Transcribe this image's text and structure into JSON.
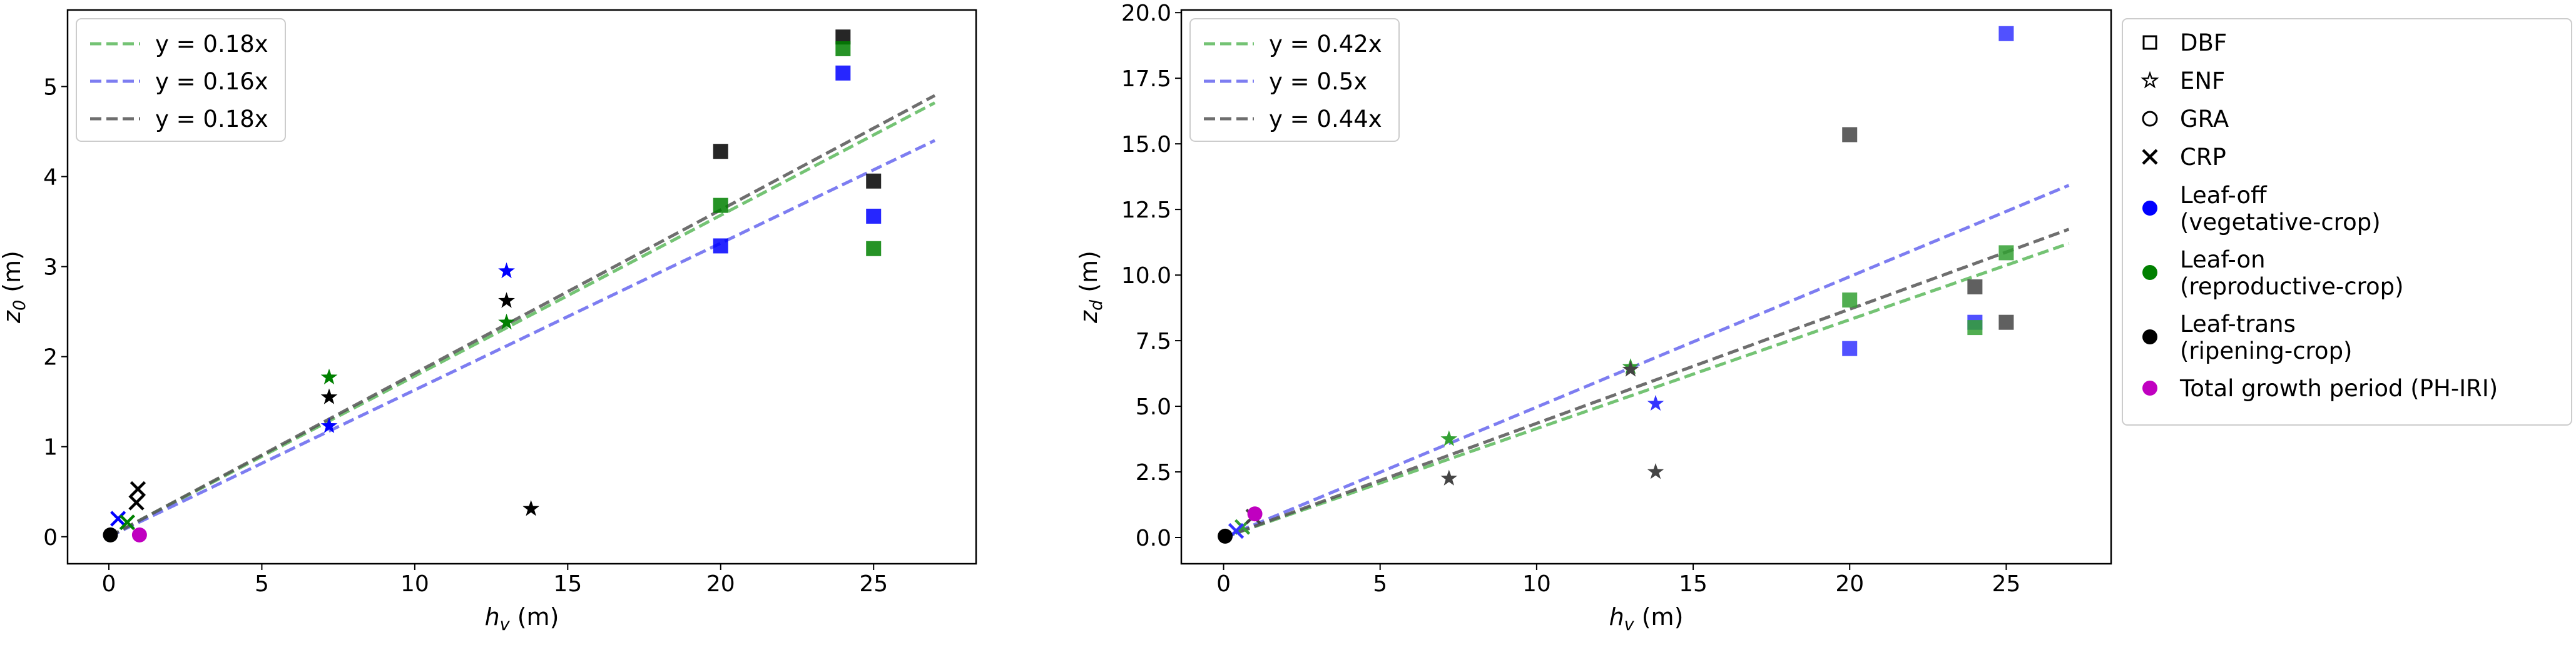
{
  "chart_data": [
    {
      "type": "scatter",
      "title": "",
      "xlabel_main": "h",
      "xlabel_sub": "v",
      "xlabel_unit": " (m)",
      "ylabel_main": "z",
      "ylabel_sub": "0",
      "ylabel_unit": " (m)",
      "xlim": [
        -1.35,
        28.35
      ],
      "ylim": [
        -0.3,
        5.85
      ],
      "xticks": [
        0,
        5,
        10,
        15,
        20,
        25
      ],
      "yticks": [
        0,
        1,
        2,
        3,
        4,
        5
      ],
      "ytick_format": "int",
      "legend_position": "upper left",
      "fit_lines": [
        {
          "label": "y = 0.18x",
          "slope": 0.1785,
          "color": "#5cb85c",
          "x_range": [
            0,
            27
          ]
        },
        {
          "label": "y = 0.16x",
          "slope": 0.163,
          "color": "#6666ee",
          "x_range": [
            0,
            27
          ]
        },
        {
          "label": "y = 0.18x",
          "slope": 0.1815,
          "color": "#555555",
          "x_range": [
            0,
            27
          ]
        }
      ],
      "points": [
        {
          "x": 24.0,
          "y": 5.55,
          "marker": "square",
          "color": "#000000"
        },
        {
          "x": 24.0,
          "y": 5.42,
          "marker": "square",
          "color": "#008000"
        },
        {
          "x": 24.0,
          "y": 5.15,
          "marker": "square",
          "color": "#0000ff"
        },
        {
          "x": 20.0,
          "y": 4.28,
          "marker": "square",
          "color": "#000000"
        },
        {
          "x": 20.0,
          "y": 3.68,
          "marker": "square",
          "color": "#008000"
        },
        {
          "x": 20.0,
          "y": 3.23,
          "marker": "square",
          "color": "#0000ff"
        },
        {
          "x": 25.0,
          "y": 3.95,
          "marker": "square",
          "color": "#000000"
        },
        {
          "x": 25.0,
          "y": 3.56,
          "marker": "square",
          "color": "#0000ff"
        },
        {
          "x": 25.0,
          "y": 3.2,
          "marker": "square",
          "color": "#008000"
        },
        {
          "x": 13.0,
          "y": 2.95,
          "marker": "star",
          "color": "#0000ff"
        },
        {
          "x": 13.0,
          "y": 2.62,
          "marker": "star",
          "color": "#000000"
        },
        {
          "x": 13.0,
          "y": 2.38,
          "marker": "star",
          "color": "#008000"
        },
        {
          "x": 7.2,
          "y": 1.77,
          "marker": "star",
          "color": "#008000"
        },
        {
          "x": 7.2,
          "y": 1.55,
          "marker": "star",
          "color": "#000000"
        },
        {
          "x": 7.2,
          "y": 1.23,
          "marker": "star",
          "color": "#0000ff"
        },
        {
          "x": 13.8,
          "y": 0.31,
          "marker": "star",
          "color": "#000000"
        },
        {
          "x": 0.95,
          "y": 0.53,
          "marker": "x",
          "color": "#000000"
        },
        {
          "x": 0.9,
          "y": 0.38,
          "marker": "x",
          "color": "#000000"
        },
        {
          "x": 0.3,
          "y": 0.2,
          "marker": "x",
          "color": "#0000ff"
        },
        {
          "x": 0.6,
          "y": 0.16,
          "marker": "x",
          "color": "#008000"
        },
        {
          "x": 0.05,
          "y": 0.02,
          "marker": "circle",
          "color": "#000000"
        },
        {
          "x": 1.0,
          "y": 0.02,
          "marker": "circle",
          "color": "#c000c0"
        }
      ]
    },
    {
      "type": "scatter",
      "title": "",
      "xlabel_main": "h",
      "xlabel_sub": "v",
      "xlabel_unit": " (m)",
      "ylabel_main": "z",
      "ylabel_sub": "d",
      "ylabel_unit": " (m)",
      "xlim": [
        -1.35,
        28.35
      ],
      "ylim": [
        -1.0,
        20.1
      ],
      "xticks": [
        0,
        5,
        10,
        15,
        20,
        25
      ],
      "yticks": [
        0.0,
        2.5,
        5.0,
        7.5,
        10.0,
        12.5,
        15.0,
        17.5,
        20.0
      ],
      "ytick_format": "1dp",
      "legend_position": "upper left",
      "fit_lines": [
        {
          "label": "y = 0.42x",
          "slope": 0.415,
          "color": "#5cb85c",
          "x_range": [
            0,
            27
          ]
        },
        {
          "label": "y = 0.5x",
          "slope": 0.497,
          "color": "#6666ee",
          "x_range": [
            0,
            27
          ]
        },
        {
          "label": "y = 0.44x",
          "slope": 0.435,
          "color": "#555555",
          "x_range": [
            0,
            27
          ]
        }
      ],
      "points": [
        {
          "x": 25.0,
          "y": 19.2,
          "marker": "square",
          "color": "#3333ff"
        },
        {
          "x": 20.0,
          "y": 15.35,
          "marker": "square",
          "color": "#444444"
        },
        {
          "x": 25.0,
          "y": 10.85,
          "marker": "square",
          "color": "#33a033"
        },
        {
          "x": 24.0,
          "y": 9.55,
          "marker": "square",
          "color": "#444444"
        },
        {
          "x": 20.0,
          "y": 9.05,
          "marker": "square",
          "color": "#33a033"
        },
        {
          "x": 24.0,
          "y": 8.2,
          "marker": "square",
          "color": "#3333ff"
        },
        {
          "x": 24.0,
          "y": 8.0,
          "marker": "square",
          "color": "#33a033"
        },
        {
          "x": 25.0,
          "y": 8.2,
          "marker": "square",
          "color": "#444444"
        },
        {
          "x": 20.0,
          "y": 7.2,
          "marker": "square",
          "color": "#3333ff"
        },
        {
          "x": 13.0,
          "y": 6.5,
          "marker": "star",
          "color": "#33a033"
        },
        {
          "x": 13.0,
          "y": 6.4,
          "marker": "star",
          "color": "#444444"
        },
        {
          "x": 13.8,
          "y": 5.1,
          "marker": "star",
          "color": "#3333ff"
        },
        {
          "x": 7.2,
          "y": 3.75,
          "marker": "star",
          "color": "#33a033"
        },
        {
          "x": 7.2,
          "y": 2.25,
          "marker": "star",
          "color": "#444444"
        },
        {
          "x": 13.8,
          "y": 2.5,
          "marker": "star",
          "color": "#444444"
        },
        {
          "x": 0.6,
          "y": 0.4,
          "marker": "x",
          "color": "#33a033"
        },
        {
          "x": 0.4,
          "y": 0.25,
          "marker": "x",
          "color": "#3333ff"
        },
        {
          "x": 0.95,
          "y": 0.8,
          "marker": "x",
          "color": "#444444"
        },
        {
          "x": 0.05,
          "y": 0.05,
          "marker": "circle",
          "color": "#000000"
        },
        {
          "x": 1.0,
          "y": 0.9,
          "marker": "circle",
          "color": "#c000c0"
        }
      ]
    }
  ],
  "shared_legend": {
    "position": "right",
    "entries": [
      {
        "label": [
          "DBF"
        ],
        "marker": "square-open",
        "color": "#000000"
      },
      {
        "label": [
          "ENF"
        ],
        "marker": "star-open",
        "color": "#000000"
      },
      {
        "label": [
          "GRA"
        ],
        "marker": "circle-open",
        "color": "#000000"
      },
      {
        "label": [
          "CRP"
        ],
        "marker": "x",
        "color": "#000000"
      },
      {
        "label": [
          "Leaf-off",
          "(vegetative-crop)"
        ],
        "marker": "dot",
        "color": "#0000ff"
      },
      {
        "label": [
          "Leaf-on",
          "(reproductive-crop)"
        ],
        "marker": "dot",
        "color": "#008000"
      },
      {
        "label": [
          "Leaf-trans",
          "(ripening-crop)"
        ],
        "marker": "dot",
        "color": "#000000"
      },
      {
        "label": [
          "Total growth period (PH-IRI)"
        ],
        "marker": "dot",
        "color": "#c000c0"
      }
    ]
  }
}
